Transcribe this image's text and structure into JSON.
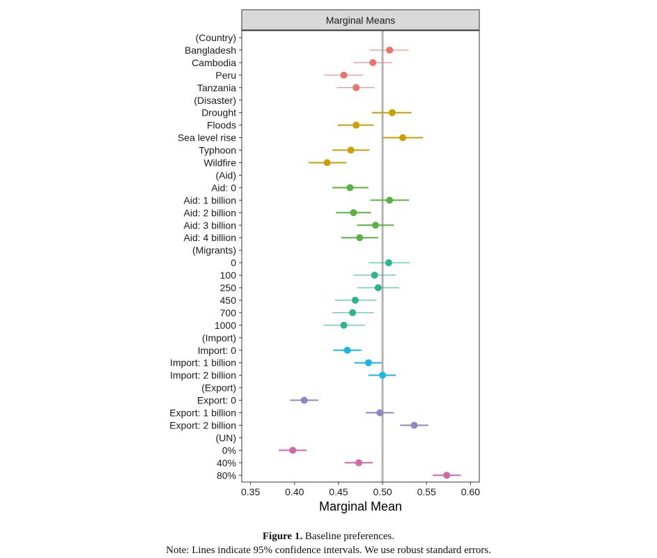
{
  "chart_data": {
    "type": "scatter",
    "subtype": "dot-and-whisker",
    "strip_title": "Marginal Means",
    "xlabel": "Marginal Mean",
    "xlim": [
      0.34,
      0.61
    ],
    "xticks": [
      "0.35",
      "0.40",
      "0.45",
      "0.50",
      "0.55",
      "0.60"
    ],
    "xtick_values": [
      0.35,
      0.4,
      0.45,
      0.5,
      0.55,
      0.6
    ],
    "reference_line": 0.5,
    "grid": false,
    "legend": "none",
    "group_colors": {
      "Country": "#E8726E",
      "Disaster": "#C9A000",
      "Aid": "#5BB043",
      "Migrants": "#2EB38F",
      "Import": "#1AB4E8",
      "Export": "#8E87C4",
      "UN": "#D269A6"
    },
    "rows": [
      {
        "label": "(Country)",
        "group": "Country",
        "header": true
      },
      {
        "label": "Bangladesh",
        "group": "Country",
        "value": 0.508,
        "lo": 0.485,
        "hi": 0.53
      },
      {
        "label": "Cambodia",
        "group": "Country",
        "value": 0.489,
        "lo": 0.467,
        "hi": 0.511
      },
      {
        "label": "Peru",
        "group": "Country",
        "value": 0.456,
        "lo": 0.434,
        "hi": 0.478
      },
      {
        "label": "Tanzania",
        "group": "Country",
        "value": 0.47,
        "lo": 0.448,
        "hi": 0.491
      },
      {
        "label": "(Disaster)",
        "group": "Disaster",
        "header": true
      },
      {
        "label": "Drought",
        "group": "Disaster",
        "value": 0.511,
        "lo": 0.488,
        "hi": 0.533
      },
      {
        "label": "Floods",
        "group": "Disaster",
        "value": 0.47,
        "lo": 0.449,
        "hi": 0.49
      },
      {
        "label": "Sea level rise",
        "group": "Disaster",
        "value": 0.523,
        "lo": 0.5,
        "hi": 0.546
      },
      {
        "label": "Typhoon",
        "group": "Disaster",
        "value": 0.464,
        "lo": 0.443,
        "hi": 0.485
      },
      {
        "label": "Wildfire",
        "group": "Disaster",
        "value": 0.437,
        "lo": 0.416,
        "hi": 0.459
      },
      {
        "label": "(Aid)",
        "group": "Aid",
        "header": true
      },
      {
        "label": "Aid: 0",
        "group": "Aid",
        "value": 0.463,
        "lo": 0.443,
        "hi": 0.484
      },
      {
        "label": "Aid: 1 billion",
        "group": "Aid",
        "value": 0.508,
        "lo": 0.486,
        "hi": 0.53
      },
      {
        "label": "Aid: 2 billion",
        "group": "Aid",
        "value": 0.467,
        "lo": 0.447,
        "hi": 0.487
      },
      {
        "label": "Aid: 3 billion",
        "group": "Aid",
        "value": 0.492,
        "lo": 0.471,
        "hi": 0.513
      },
      {
        "label": "Aid: 4 billion",
        "group": "Aid",
        "value": 0.474,
        "lo": 0.453,
        "hi": 0.495
      },
      {
        "label": "(Migrants)",
        "group": "Migrants",
        "header": true
      },
      {
        "label": "0",
        "group": "Migrants",
        "value": 0.507,
        "lo": 0.484,
        "hi": 0.531
      },
      {
        "label": "100",
        "group": "Migrants",
        "value": 0.491,
        "lo": 0.467,
        "hi": 0.515
      },
      {
        "label": "250",
        "group": "Migrants",
        "value": 0.495,
        "lo": 0.471,
        "hi": 0.519
      },
      {
        "label": "450",
        "group": "Migrants",
        "value": 0.469,
        "lo": 0.446,
        "hi": 0.493
      },
      {
        "label": "700",
        "group": "Migrants",
        "value": 0.466,
        "lo": 0.443,
        "hi": 0.49
      },
      {
        "label": "1000",
        "group": "Migrants",
        "value": 0.456,
        "lo": 0.433,
        "hi": 0.48
      },
      {
        "label": "(Import)",
        "group": "Import",
        "header": true
      },
      {
        "label": "Import: 0",
        "group": "Import",
        "value": 0.46,
        "lo": 0.444,
        "hi": 0.476
      },
      {
        "label": "Import: 1 billion",
        "group": "Import",
        "value": 0.484,
        "lo": 0.468,
        "hi": 0.499
      },
      {
        "label": "Import: 2 billion",
        "group": "Import",
        "value": 0.5,
        "lo": 0.484,
        "hi": 0.515
      },
      {
        "label": "(Export)",
        "group": "Export",
        "header": true
      },
      {
        "label": "Export: 0",
        "group": "Export",
        "value": 0.411,
        "lo": 0.395,
        "hi": 0.427
      },
      {
        "label": "Export: 1 billion",
        "group": "Export",
        "value": 0.497,
        "lo": 0.481,
        "hi": 0.513
      },
      {
        "label": "Export: 2 billion",
        "group": "Export",
        "value": 0.536,
        "lo": 0.52,
        "hi": 0.552
      },
      {
        "label": "(UN)",
        "group": "UN",
        "header": true
      },
      {
        "label": "0%",
        "group": "UN",
        "value": 0.398,
        "lo": 0.382,
        "hi": 0.414
      },
      {
        "label": "40%",
        "group": "UN",
        "value": 0.473,
        "lo": 0.457,
        "hi": 0.489
      },
      {
        "label": "80%",
        "group": "UN",
        "value": 0.573,
        "lo": 0.557,
        "hi": 0.589
      }
    ]
  },
  "caption": {
    "figure_label": "Figure 1.",
    "figure_title": "Baseline preferences.",
    "note": "Note: Lines indicate 95% confidence intervals. We use robust standard errors."
  }
}
